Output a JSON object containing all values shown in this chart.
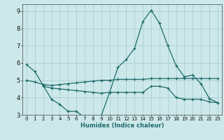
{
  "background_color": "#cde8ea",
  "grid_color": "#aacfd2",
  "line_color": "#1e6b6b",
  "xlabel": "Humidex (Indice chaleur)",
  "xlim": [
    -0.5,
    23.5
  ],
  "ylim": [
    3,
    9.4
  ],
  "yticks": [
    3,
    4,
    5,
    6,
    7,
    8,
    9
  ],
  "xticks": [
    0,
    1,
    2,
    3,
    4,
    5,
    6,
    7,
    8,
    9,
    10,
    11,
    12,
    13,
    14,
    15,
    16,
    17,
    18,
    19,
    20,
    21,
    22,
    23
  ],
  "lines": [
    {
      "x": [
        0,
        1,
        2,
        3,
        4,
        5,
        6,
        7,
        8,
        9,
        10,
        11,
        12,
        13,
        14,
        15,
        16,
        17,
        18,
        19,
        20,
        21,
        22,
        23
      ],
      "y": [
        5.9,
        5.5,
        4.7,
        3.9,
        3.6,
        3.2,
        3.2,
        2.85,
        2.85,
        2.95,
        4.3,
        5.75,
        6.2,
        6.85,
        8.4,
        9.05,
        8.3,
        7.0,
        5.85,
        5.2,
        5.3,
        4.8,
        3.95,
        3.7
      ]
    },
    {
      "x": [
        0,
        1,
        2,
        3,
        4,
        5,
        6,
        7,
        8,
        9,
        10,
        11,
        12,
        13,
        14,
        15,
        16,
        17,
        18,
        19,
        20,
        21,
        22,
        23
      ],
      "y": [
        5.0,
        4.9,
        4.75,
        4.7,
        4.75,
        4.8,
        4.85,
        4.9,
        4.95,
        5.0,
        5.0,
        5.05,
        5.05,
        5.05,
        5.05,
        5.1,
        5.1,
        5.1,
        5.1,
        5.1,
        5.1,
        5.1,
        5.1,
        5.1
      ]
    },
    {
      "x": [
        2,
        3,
        4,
        5,
        6,
        7,
        8,
        9,
        10,
        11,
        12,
        13,
        14,
        15,
        16,
        17,
        18,
        19,
        20,
        21,
        22,
        23
      ],
      "y": [
        4.65,
        4.55,
        4.5,
        4.45,
        4.4,
        4.35,
        4.3,
        4.25,
        4.3,
        4.3,
        4.3,
        4.3,
        4.3,
        4.65,
        4.65,
        4.55,
        4.0,
        3.9,
        3.9,
        3.9,
        3.75,
        3.7
      ]
    }
  ]
}
